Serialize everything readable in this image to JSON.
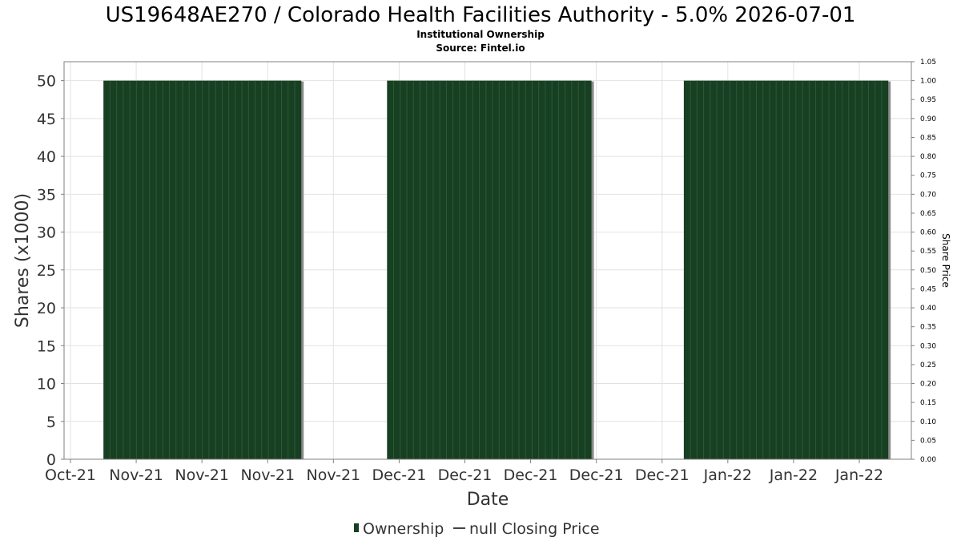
{
  "chart_data": {
    "type": "bar",
    "title": "US19648AE270 / Colorado Health Facilities Authority - 5.0% 2026-07-01",
    "subtitle": "Institutional Ownership",
    "source": "Source: Fintel.io",
    "xlabel": "Date",
    "ylabel": "Shares (x1000)",
    "y2label": "Share Price",
    "ylim": [
      0,
      52.5
    ],
    "y2lim": [
      0,
      1.05
    ],
    "yticks": [
      0,
      5,
      10,
      15,
      20,
      25,
      30,
      35,
      40,
      45,
      50
    ],
    "y2ticks": [
      "0.00",
      "0.05",
      "0.10",
      "0.15",
      "0.20",
      "0.25",
      "0.30",
      "0.35",
      "0.40",
      "0.45",
      "0.50",
      "0.55",
      "0.60",
      "0.65",
      "0.70",
      "0.75",
      "0.80",
      "0.85",
      "0.90",
      "0.95",
      "1.00",
      "1.05"
    ],
    "xticks": [
      "Oct-21",
      "Nov-21",
      "Nov-21",
      "Nov-21",
      "Nov-21",
      "Dec-21",
      "Dec-21",
      "Dec-21",
      "Dec-21",
      "Dec-21",
      "Jan-22",
      "Jan-22",
      "Jan-22"
    ],
    "grid": true,
    "legend_position": "bottom",
    "series": [
      {
        "name": "Ownership",
        "type": "bar",
        "color": "#173f21",
        "blocks": [
          {
            "start_day": 5,
            "end_day": 34,
            "value": 50
          },
          {
            "start_day": 48,
            "end_day": 78,
            "value": 50
          },
          {
            "start_day": 93,
            "end_day": 123,
            "value": 50
          }
        ]
      },
      {
        "name": "null Closing Price",
        "type": "line",
        "color": "#444444",
        "values": []
      }
    ]
  }
}
